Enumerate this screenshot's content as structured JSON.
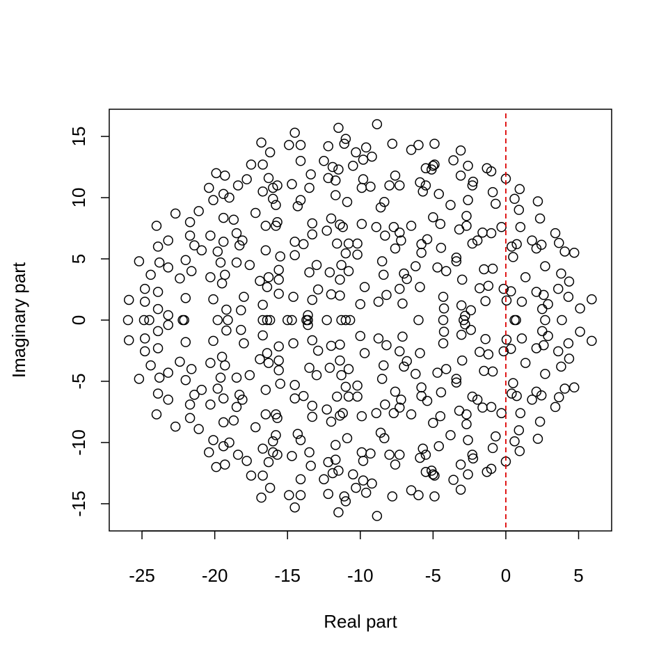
{
  "chart_data": {
    "type": "scatter",
    "x_label": "Real part",
    "y_label": "Imaginary part",
    "xlim": [
      -27.25,
      7.27
    ],
    "ylim": [
      -17.22,
      17.22
    ],
    "xticks": [
      -25,
      -20,
      -15,
      -10,
      -5,
      0,
      5
    ],
    "yticks": [
      -15,
      -10,
      -5,
      0,
      5,
      10,
      15
    ],
    "vline": 0,
    "vline_color": "#dd0000",
    "color": "#000000",
    "x": [
      -25.9,
      -25.2,
      -24.8,
      -24.8,
      -24.4,
      -24.0,
      -23.9,
      -23.8,
      -23.9,
      -23.9,
      -23.2,
      -23.2,
      -23.2,
      -22.7,
      -22.4,
      -22.0,
      -22.0,
      -21.7,
      -21.7,
      -21.6,
      -21.4,
      -21.1,
      -20.9,
      -20.4,
      -20.3,
      -20.3,
      -20.1,
      -20.1,
      -19.9,
      -19.8,
      -19.6,
      -19.5,
      -19.4,
      -19.4,
      -19.4,
      -19.3,
      -19.3,
      -19.2,
      -19.0,
      -18.7,
      -18.5,
      -18.5,
      -18.4,
      -18.3,
      -18.1,
      -18.2,
      -18.0,
      -17.8,
      -17.6,
      -17.5,
      -17.2,
      -16.9,
      -16.8,
      -16.7,
      -16.7,
      -16.7,
      -16.5,
      -16.5,
      -16.4,
      -16.3,
      -16.3,
      -16.2,
      -16.0,
      -16.0,
      -15.8,
      -15.7,
      -15.8,
      -15.7,
      -15.6,
      -15.5,
      -15.6,
      -15.6,
      -14.9,
      -14.7,
      -14.5,
      -14.5,
      -14.5,
      -14.6,
      -14.3,
      -14.1,
      -14.1,
      -14.1,
      -13.9,
      -13.5,
      -13.5,
      -13.6,
      -13.4,
      -13.3,
      -13.3,
      -13.3,
      -13.0,
      -12.9,
      -12.5,
      -12.3,
      -12.2,
      -12.2,
      -12.1,
      -12.0,
      -12.0,
      -11.9,
      -11.7,
      -11.5,
      -11.6,
      -11.5,
      -11.4,
      -11.7,
      -11.4,
      -11.4,
      -11.3,
      -11.2,
      -11.1,
      -11.0,
      -11.0,
      -10.9,
      -10.8,
      -10.8,
      -10.2,
      -10.5,
      -10.3,
      -10.2,
      -10.0,
      -9.9,
      -9.9,
      -9.8,
      -9.8,
      -9.7,
      -9.6,
      -9.3,
      -9.2,
      -8.9,
      -8.85,
      -8.75,
      -8.6,
      -8.5,
      -8.4,
      -8.3,
      -8.35,
      -8.2,
      -8.0,
      -7.8,
      -7.6,
      -7.7,
      -7.6,
      -7.3,
      -7.3,
      -7.3,
      -7.2,
      -7.1,
      -7.0,
      -6.8,
      -6.5,
      -6.5,
      -6.2,
      -6.0,
      -5.9,
      -5.8,
      -5.9,
      -5.8,
      -5.7,
      -5.5,
      -5.5,
      -5.4,
      -5.1,
      -5.0,
      -4.9,
      -4.9,
      -5.0,
      -4.7,
      -4.6,
      -4.5,
      -4.45,
      -4.3,
      -4.25,
      -4.1,
      -3.8,
      -3.6,
      -3.4,
      -3.4,
      -3.2,
      -3.1,
      -3.1,
      -3.05,
      -3.0,
      -2.8,
      -2.7,
      -2.7,
      -2.6,
      -2.6,
      -2.4,
      -2.3,
      -2.25,
      -2.3,
      -1.95,
      -1.8,
      -1.6,
      -1.5,
      -1.4,
      -1.2,
      -1.3,
      -1.0,
      -0.9,
      -1.0,
      -0.9,
      -0.7,
      -0.3,
      -0.15,
      0.0,
      0.05,
      0.35,
      0.4,
      0.5,
      0.6,
      0.75,
      0.9,
      0.95,
      1.0,
      1.1,
      1.35,
      1.8,
      2.1,
      2.1,
      2.2,
      2.35,
      2.45,
      2.5,
      2.6,
      2.7,
      2.9,
      3.4,
      3.6,
      3.65,
      3.8,
      4.05,
      4.35,
      4.3,
      4.7,
      5.1,
      5.9,
      -25.96,
      -24.86,
      -24.5,
      -22.2,
      -22.1,
      -19.8,
      -19.1,
      -16.7,
      -16.4,
      -16.2,
      -15.0,
      -14.7,
      -13.7,
      -13.6,
      -12.3,
      -11.3,
      -11.0,
      -10.7,
      -6.0,
      -4.3,
      -2.9,
      0.6,
      0.7,
      2.7,
      3.85,
      -25.9,
      -25.2,
      -24.8,
      -24.8,
      -24.4,
      -24.0,
      -23.9,
      -23.8,
      -23.9,
      -23.9,
      -23.2,
      -23.2,
      -23.2,
      -22.7,
      -22.4,
      -22.0,
      -22.0,
      -21.7,
      -21.7,
      -21.6,
      -21.4,
      -21.1,
      -20.9,
      -20.4,
      -20.3,
      -20.3,
      -20.1,
      -20.1,
      -19.9,
      -19.8,
      -19.6,
      -19.5,
      -19.4,
      -19.4,
      -19.4,
      -19.3,
      -19.3,
      -19.2,
      -19.0,
      -18.7,
      -18.5,
      -18.5,
      -18.4,
      -18.3,
      -18.1,
      -18.2,
      -18.0,
      -17.8,
      -17.6,
      -17.5,
      -17.2,
      -16.9,
      -16.8,
      -16.7,
      -16.7,
      -16.7,
      -16.5,
      -16.5,
      -16.4,
      -16.3,
      -16.3,
      -16.2,
      -16.0,
      -16.0,
      -15.8,
      -15.7,
      -15.8,
      -15.7,
      -15.6,
      -15.5,
      -15.6,
      -15.6,
      -14.9,
      -14.7,
      -14.5,
      -14.5,
      -14.5,
      -14.6,
      -14.3,
      -14.1,
      -14.1,
      -14.1,
      -13.9,
      -13.5,
      -13.5,
      -13.6,
      -13.4,
      -13.3,
      -13.3,
      -13.3,
      -13.0,
      -12.9,
      -12.5,
      -12.3,
      -12.2,
      -12.2,
      -12.1,
      -12.0,
      -12.0,
      -11.9,
      -11.7,
      -11.5,
      -11.6,
      -11.5,
      -11.4,
      -11.7,
      -11.4,
      -11.4,
      -11.3,
      -11.2,
      -11.1,
      -11.0,
      -11.0,
      -10.9,
      -10.8,
      -10.8,
      -10.2,
      -10.5,
      -10.3,
      -10.2,
      -10.0,
      -9.9,
      -9.9,
      -9.8,
      -9.8,
      -9.7,
      -9.6,
      -9.3,
      -9.2,
      -8.9,
      -8.85,
      -8.75,
      -8.6,
      -8.5,
      -8.4,
      -8.3,
      -8.35,
      -8.2,
      -8.0,
      -7.8,
      -7.6,
      -7.7,
      -7.6,
      -7.3,
      -7.3,
      -7.3,
      -7.2,
      -7.1,
      -7.0,
      -6.8,
      -6.5,
      -6.5,
      -6.2,
      -6.0,
      -5.9,
      -5.8,
      -5.9,
      -5.8,
      -5.7,
      -5.5,
      -5.5,
      -5.4,
      -5.1,
      -5.0,
      -4.9,
      -4.9,
      -5.0,
      -4.7,
      -4.6,
      -4.5,
      -4.45,
      -4.3,
      -4.25,
      -4.1,
      -3.8,
      -3.6,
      -3.4,
      -3.4,
      -3.2,
      -3.1,
      -3.1,
      -3.05,
      -3.0,
      -2.8,
      -2.7,
      -2.7,
      -2.6,
      -2.6,
      -2.4,
      -2.3,
      -2.25,
      -2.3,
      -1.95,
      -1.8,
      -1.6,
      -1.5,
      -1.4,
      -1.2,
      -1.3,
      -1.0,
      -0.9,
      -1.0,
      -0.9,
      -0.7,
      -0.3,
      -0.15,
      0.0,
      0.05,
      0.35,
      0.4,
      0.5,
      0.6,
      0.75,
      0.9,
      0.95,
      1.0,
      1.1,
      1.35,
      1.8,
      2.1,
      2.1,
      2.2,
      2.35,
      2.45,
      2.5,
      2.6,
      2.7,
      2.9,
      3.4,
      3.6,
      3.65,
      3.8,
      4.05,
      4.35,
      4.3,
      4.7,
      5.1,
      5.9
    ],
    "y": [
      1.65,
      4.8,
      2.55,
      1.5,
      3.7,
      7.7,
      6.0,
      4.7,
      2.3,
      0.9,
      6.5,
      4.3,
      0.4,
      8.7,
      3.4,
      4.9,
      1.8,
      8.0,
      6.9,
      4.0,
      6.1,
      8.9,
      5.7,
      10.8,
      6.9,
      3.5,
      1.7,
      9.8,
      12.0,
      5.6,
      4.7,
      3.0,
      10.3,
      8.35,
      6.4,
      11.8,
      3.7,
      0.85,
      10.0,
      8.2,
      7.1,
      4.7,
      11.0,
      6.1,
      6.5,
      0.8,
      1.9,
      11.5,
      4.5,
      12.7,
      8.75,
      3.2,
      14.5,
      12.7,
      10.5,
      1.25,
      7.7,
      5.7,
      2.7,
      3.5,
      11.6,
      13.7,
      10.8,
      9.9,
      7.7,
      8.0,
      9.4,
      11.0,
      4.1,
      5.2,
      3.3,
      2.15,
      14.3,
      11.1,
      15.3,
      6.4,
      5.3,
      1.9,
      9.3,
      9.8,
      14.3,
      13.0,
      6.2,
      3.9,
      10.8,
      0.4,
      11.9,
      7.9,
      7.0,
      1.65,
      4.5,
      2.5,
      13.0,
      7.3,
      14.2,
      11.6,
      3.9,
      2.1,
      8.3,
      12.5,
      11.4,
      15.7,
      6.25,
      12.3,
      7.8,
      10.2,
      3.3,
      2.0,
      4.5,
      7.6,
      14.4,
      14.8,
      5.45,
      9.65,
      6.25,
      4.0,
      6.25,
      12.6,
      13.7,
      5.35,
      1.3,
      10.8,
      7.85,
      11.5,
      13.1,
      2.7,
      14.1,
      10.9,
      13.35,
      7.6,
      16.0,
      1.5,
      9.2,
      4.8,
      3.7,
      6.9,
      9.65,
      2.05,
      11.0,
      14.4,
      11.8,
      7.6,
      5.85,
      11.0,
      2.55,
      7.15,
      6.5,
      1.35,
      3.8,
      3.35,
      7.7,
      13.9,
      4.4,
      14.3,
      11.25,
      6.2,
      2.7,
      5.5,
      10.5,
      12.4,
      11.0,
      6.6,
      12.3,
      12.6,
      14.4,
      12.7,
      8.4,
      4.3,
      10.3,
      7.85,
      5.9,
      1.9,
      0.95,
      4.0,
      9.4,
      13.05,
      5.1,
      4.8,
      7.4,
      13.85,
      11.8,
      1.2,
      3.3,
      0.35,
      8.5,
      7.7,
      9.8,
      12.6,
      0.8,
      11.0,
      11.3,
      6.25,
      6.5,
      2.6,
      7.15,
      4.15,
      1.55,
      2.8,
      12.4,
      12.15,
      10.45,
      7.1,
      4.2,
      9.5,
      7.6,
      2.55,
      11.55,
      1.6,
      2.35,
      6.0,
      5.15,
      9.9,
      6.2,
      9.0,
      10.7,
      7.6,
      1.5,
      3.5,
      6.5,
      5.85,
      2.3,
      9.7,
      8.3,
      6.15,
      0.9,
      2.05,
      4.4,
      1.3,
      7.1,
      2.55,
      6.3,
      3.8,
      5.6,
      3.15,
      1.9,
      5.5,
      0.95,
      1.7,
      0,
      0,
      0,
      0,
      0,
      0,
      0,
      0,
      0,
      0,
      0,
      0,
      0,
      0,
      0,
      0,
      0,
      0,
      0,
      0,
      0,
      0,
      0,
      0,
      0,
      -1.65,
      -4.8,
      -2.55,
      -1.5,
      -3.7,
      -7.7,
      -6.0,
      -4.7,
      -2.3,
      -0.9,
      -6.5,
      -4.3,
      -0.4,
      -8.7,
      -3.4,
      -4.9,
      -1.8,
      -8.0,
      -6.9,
      -4.0,
      -6.1,
      -8.9,
      -5.7,
      -10.8,
      -6.9,
      -3.5,
      -1.7,
      -9.8,
      -12.0,
      -5.6,
      -4.7,
      -3.0,
      -10.3,
      -8.35,
      -6.4,
      -11.8,
      -3.7,
      -0.85,
      -10.0,
      -8.2,
      -7.1,
      -4.7,
      -11.0,
      -6.1,
      -6.5,
      -0.8,
      -1.9,
      -11.5,
      -4.5,
      -12.7,
      -8.75,
      -3.2,
      -14.5,
      -12.7,
      -10.5,
      -1.25,
      -7.7,
      -5.7,
      -2.7,
      -3.5,
      -11.6,
      -13.7,
      -10.8,
      -9.9,
      -7.7,
      -8.0,
      -9.4,
      -11.0,
      -4.1,
      -5.2,
      -3.3,
      -2.15,
      -14.3,
      -11.1,
      -15.3,
      -6.4,
      -5.3,
      -1.9,
      -9.3,
      -9.8,
      -14.3,
      -13.0,
      -6.2,
      -3.9,
      -10.8,
      -0.4,
      -11.9,
      -7.9,
      -7.0,
      -1.65,
      -4.5,
      -2.5,
      -13.0,
      -7.3,
      -14.2,
      -11.6,
      -3.9,
      -2.1,
      -8.3,
      -12.5,
      -11.4,
      -15.7,
      -6.25,
      -12.3,
      -7.8,
      -10.2,
      -3.3,
      -2.0,
      -4.5,
      -7.6,
      -14.4,
      -14.8,
      -5.45,
      -9.65,
      -6.25,
      -4.0,
      -6.25,
      -12.6,
      -13.7,
      -5.35,
      -1.3,
      -10.8,
      -7.85,
      -11.5,
      -13.1,
      -2.7,
      -14.1,
      -10.9,
      -13.35,
      -7.6,
      -16.0,
      -1.5,
      -9.2,
      -4.8,
      -3.7,
      -6.9,
      -9.65,
      -2.05,
      -11.0,
      -14.4,
      -11.8,
      -7.6,
      -5.85,
      -11.0,
      -2.55,
      -7.15,
      -6.5,
      -1.35,
      -3.8,
      -3.35,
      -7.7,
      -13.9,
      -4.4,
      -14.3,
      -11.25,
      -6.2,
      -2.7,
      -5.5,
      -10.5,
      -12.4,
      -11.0,
      -6.6,
      -12.3,
      -12.6,
      -14.4,
      -12.7,
      -8.4,
      -4.3,
      -10.3,
      -7.85,
      -5.9,
      -1.9,
      -0.95,
      -4.0,
      -9.4,
      -13.05,
      -5.1,
      -4.8,
      -7.4,
      -13.85,
      -11.8,
      -1.2,
      -3.3,
      -0.35,
      -8.5,
      -7.7,
      -9.8,
      -12.6,
      -0.8,
      -11.0,
      -11.3,
      -6.25,
      -6.5,
      -2.6,
      -7.15,
      -4.15,
      -1.55,
      -2.8,
      -12.4,
      -12.15,
      -10.45,
      -7.1,
      -4.2,
      -9.5,
      -7.6,
      -2.55,
      -11.55,
      -1.6,
      -2.35,
      -6.0,
      -5.15,
      -9.9,
      -6.2,
      -9.0,
      -10.7,
      -7.6,
      -1.5,
      -3.5,
      -6.5,
      -5.85,
      -2.3,
      -9.7,
      -8.3,
      -6.15,
      -0.9,
      -2.05,
      -4.4,
      -1.3,
      -7.1,
      -2.55,
      -6.3,
      -3.8,
      -5.6,
      -3.15,
      -1.9,
      -5.5,
      -0.95,
      -1.7
    ]
  }
}
